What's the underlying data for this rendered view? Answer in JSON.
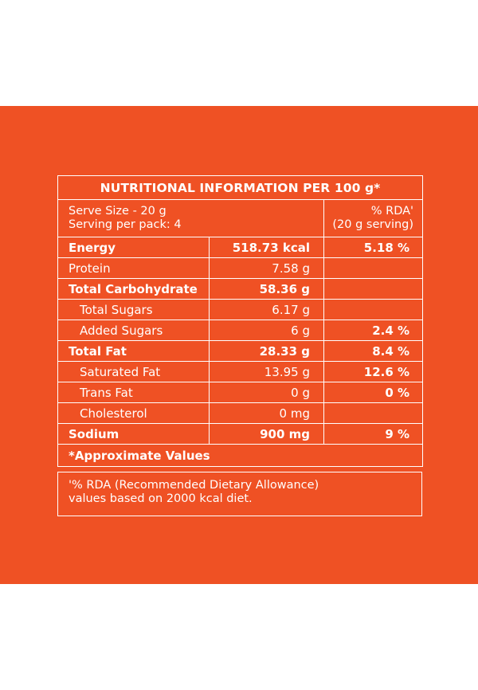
{
  "title": "NUTRITIONAL INFORMATION PER 100 g*",
  "serve": {
    "size": "Serve Size - 20 g",
    "per_pack": "Serving per pack: 4",
    "rda_label": "% RDA'",
    "rda_serving": "(20 g serving)"
  },
  "rows": [
    {
      "name": "Energy",
      "value": "518.73 kcal",
      "rda": "5.18 %"
    },
    {
      "name": "Protein",
      "value": "7.58 g",
      "rda": ""
    },
    {
      "name": "Total Carbohydrate",
      "value": "58.36 g",
      "rda": ""
    },
    {
      "name": "Total Sugars",
      "value": "6.17 g",
      "rda": ""
    },
    {
      "name": "Added Sugars",
      "value": "6 g",
      "rda": "2.4 %"
    },
    {
      "name": "Total Fat",
      "value": "28.33 g",
      "rda": "8.4 %"
    },
    {
      "name": "Saturated Fat",
      "value": "13.95 g",
      "rda": "12.6 %"
    },
    {
      "name": "Trans Fat",
      "value": "0 g",
      "rda": "0 %"
    },
    {
      "name": "Cholesterol",
      "value": "0 mg",
      "rda": ""
    },
    {
      "name": "Sodium",
      "value": "900 mg",
      "rda": "9 %"
    }
  ],
  "approx_note": "*Approximate Values",
  "footnote": {
    "line1": "'% RDA (Recommended Dietary Allowance)",
    "line2": "values based on 2000 kcal diet."
  },
  "colors": {
    "panel": "#ef5124",
    "text": "#ffffff"
  }
}
